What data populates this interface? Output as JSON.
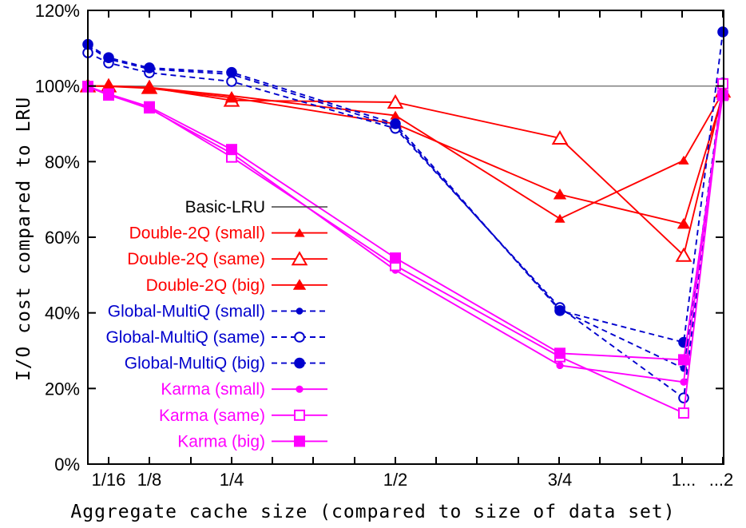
{
  "figure": {
    "background": "#ffffff",
    "border_color": "#000000",
    "lru_line_color": "#808080"
  },
  "chart_data": {
    "type": "line",
    "xlabel": "Aggregate cache size (compared to size of data set)",
    "ylabel": "I/O cost compared to LRU",
    "ylim": [
      0,
      120
    ],
    "y_tick_labels": [
      "0%",
      "20%",
      "40%",
      "60%",
      "80%",
      "100%",
      "120%"
    ],
    "x_tick_labels": [
      "1/16",
      "1/8",
      "1/4",
      "1/2",
      "3/4",
      "1...",
      "...2"
    ],
    "x": [
      "1/32",
      "1/16",
      "1/8",
      "1/4",
      "1/2",
      "3/4",
      "1",
      "2"
    ],
    "legend_position": "inside-left-middle",
    "grid": false,
    "series": [
      {
        "name": "Basic-LRU",
        "color": "#808080",
        "label_color": "#000000",
        "sample_color": "#404040",
        "style": "solid",
        "marker": "none",
        "values": [
          100,
          100,
          100,
          100,
          100,
          100,
          100,
          100
        ]
      },
      {
        "name": "Double-2Q (small)",
        "color": "#ff0000",
        "label_color": "#ff0000",
        "sample_color": "#ff0000",
        "style": "solid",
        "marker": "triangle-small-filled",
        "values": [
          100,
          100,
          99.6,
          97.4,
          92.2,
          64.9,
          80.3,
          98.3
        ]
      },
      {
        "name": "Double-2Q (same)",
        "color": "#ff0000",
        "label_color": "#ff0000",
        "sample_color": "#ff0000",
        "style": "solid",
        "marker": "triangle-open",
        "values": [
          100,
          100,
          99.6,
          96.2,
          95.7,
          86.2,
          55.2,
          98.6
        ]
      },
      {
        "name": "Double-2Q (big)",
        "color": "#ff0000",
        "label_color": "#ff0000",
        "sample_color": "#ff0000",
        "style": "solid",
        "marker": "triangle-filled",
        "values": [
          100,
          99.9,
          99.4,
          96.9,
          90.0,
          71.3,
          63.5,
          97.7
        ]
      },
      {
        "name": "Global-MultiQ (small)",
        "color": "#0000cd",
        "label_color": "#0000cd",
        "sample_color": "#0000cd",
        "style": "dashed",
        "marker": "circle-small-filled",
        "values": [
          110.6,
          107.1,
          104.5,
          103.1,
          89.3,
          40.9,
          25.3,
          100.4
        ]
      },
      {
        "name": "Global-MultiQ (same)",
        "color": "#0000cd",
        "label_color": "#0000cd",
        "sample_color": "#0000cd",
        "style": "dashed",
        "marker": "circle-open",
        "values": [
          108.8,
          106.1,
          103.5,
          101.2,
          88.8,
          41.4,
          17.5,
          100.8
        ]
      },
      {
        "name": "Global-MultiQ (big)",
        "color": "#0000cd",
        "label_color": "#0000cd",
        "sample_color": "#0000cd",
        "style": "dashed",
        "marker": "circle-filled",
        "values": [
          111.0,
          107.5,
          104.8,
          103.6,
          90.0,
          40.6,
          32.2,
          114.3
        ]
      },
      {
        "name": "Karma (small)",
        "color": "#ff00ff",
        "label_color": "#ff00ff",
        "sample_color": "#ff00ff",
        "style": "solid",
        "marker": "dot-filled",
        "values": [
          100,
          97.7,
          94.0,
          82.2,
          51.3,
          26.1,
          21.7,
          100.2
        ]
      },
      {
        "name": "Karma (same)",
        "color": "#ff00ff",
        "label_color": "#ff00ff",
        "sample_color": "#ff00ff",
        "style": "solid",
        "marker": "square-open",
        "values": [
          99.8,
          97.6,
          94.2,
          81.2,
          52.5,
          28.4,
          13.5,
          100.6
        ]
      },
      {
        "name": "Karma (big)",
        "color": "#ff00ff",
        "label_color": "#ff00ff",
        "sample_color": "#ff00ff",
        "style": "solid",
        "marker": "square-filled",
        "values": [
          99.9,
          97.9,
          94.5,
          83.2,
          54.5,
          29.3,
          27.6,
          97.5
        ]
      }
    ]
  }
}
